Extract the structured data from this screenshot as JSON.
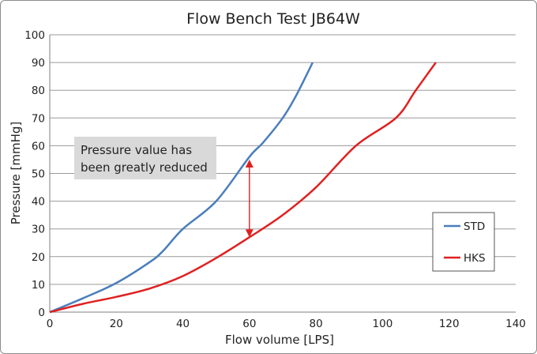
{
  "chart_data": {
    "type": "line",
    "title": "Flow Bench Test  JB64W",
    "xlabel": "Flow volume [LPS]",
    "ylabel": "Pressure [mmHg]",
    "xlim": [
      0,
      140
    ],
    "ylim": [
      0,
      100
    ],
    "xticks": [
      0,
      20,
      40,
      60,
      80,
      100,
      120,
      140
    ],
    "yticks": [
      0,
      10,
      20,
      30,
      40,
      50,
      60,
      70,
      80,
      90,
      100
    ],
    "grid": {
      "horizontal": true,
      "vertical": false
    },
    "legend_position": "right",
    "series": [
      {
        "name": "STD",
        "color": "#4a7ebb",
        "points": [
          [
            0,
            0
          ],
          [
            10,
            5
          ],
          [
            20,
            10.5
          ],
          [
            30,
            18
          ],
          [
            34,
            22
          ],
          [
            40,
            30
          ],
          [
            50,
            40
          ],
          [
            60,
            56
          ],
          [
            64,
            61
          ],
          [
            70,
            70
          ],
          [
            74,
            78
          ],
          [
            79,
            90
          ]
        ]
      },
      {
        "name": "HKS",
        "color": "#e02020",
        "points": [
          [
            0,
            0
          ],
          [
            10,
            3
          ],
          [
            20,
            5.5
          ],
          [
            30,
            8.5
          ],
          [
            40,
            13
          ],
          [
            50,
            19.5
          ],
          [
            60,
            27
          ],
          [
            70,
            35
          ],
          [
            80,
            45
          ],
          [
            92,
            60
          ],
          [
            104,
            70
          ],
          [
            110,
            80
          ],
          [
            116,
            90
          ]
        ]
      }
    ],
    "annotation": {
      "text_lines": [
        "Pressure value has",
        "been greatly reduced"
      ],
      "arrow": {
        "x": 60,
        "y_from": 27,
        "y_to": 55,
        "color": "#e02020"
      }
    }
  }
}
